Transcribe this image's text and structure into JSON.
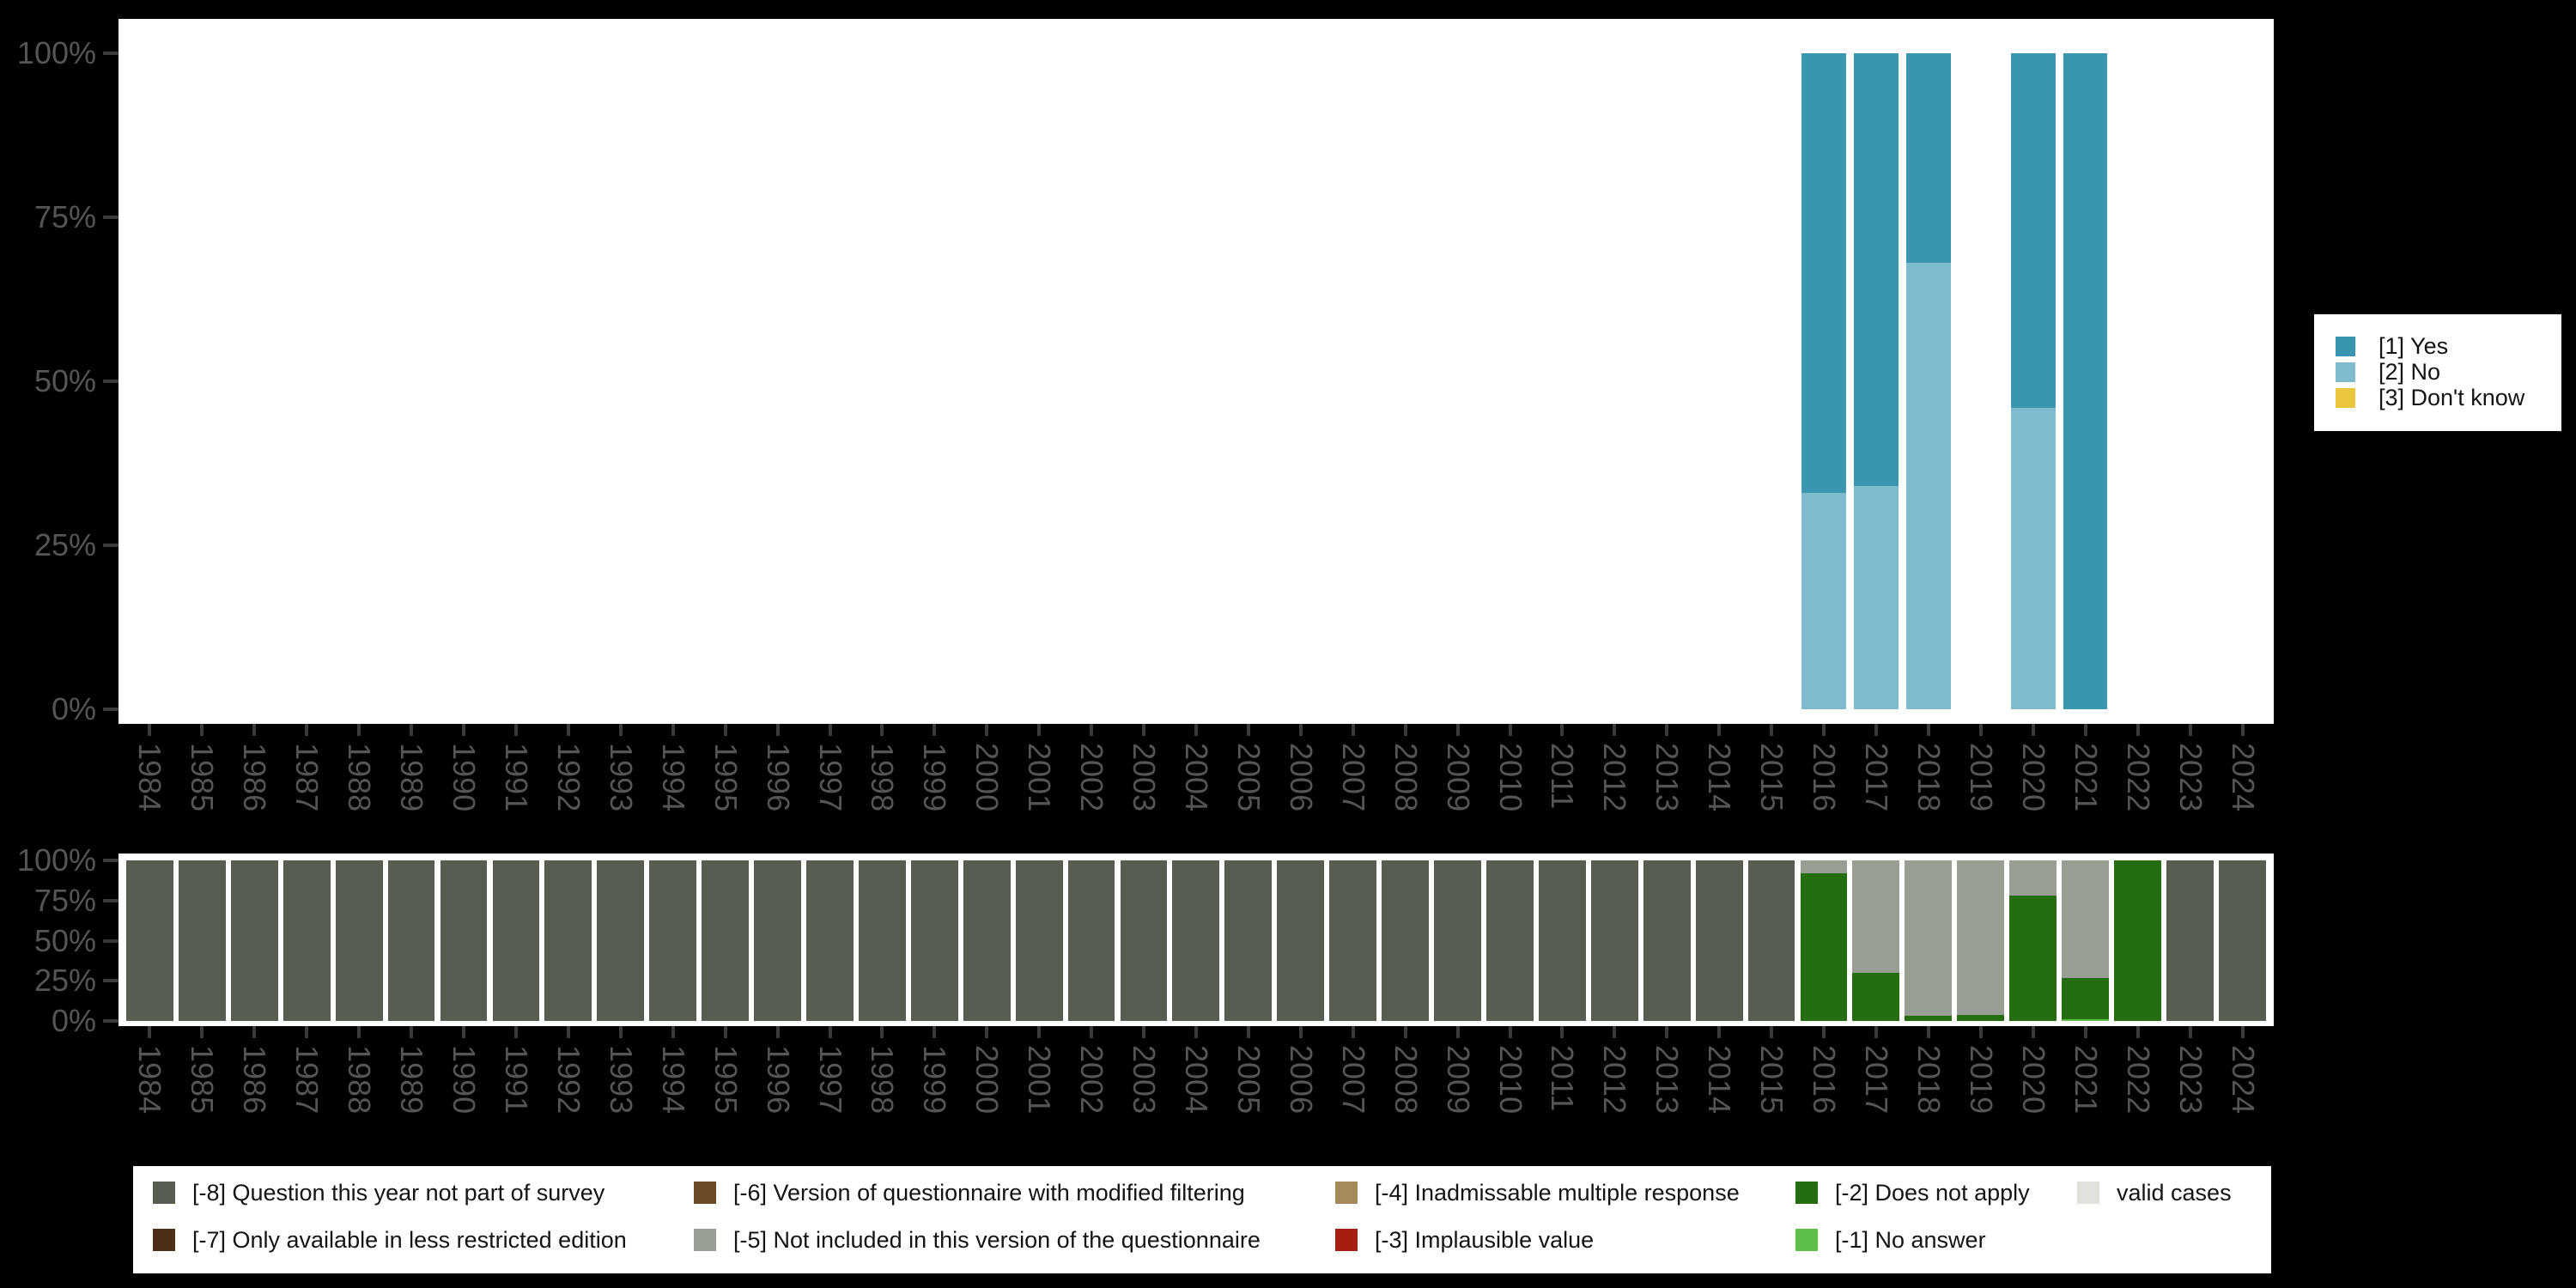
{
  "page": {
    "background_color": "#000000",
    "panel_color": "#ffffff",
    "axis_text_color": "#555555",
    "axis_tick_color": "#3a3a3a"
  },
  "chart_data": [
    {
      "type": "bar",
      "stacked": true,
      "unit": "percent",
      "title": "",
      "xlabel": "",
      "ylabel": "",
      "ylim": [
        0,
        100
      ],
      "grid": false,
      "legend_position": "right",
      "y_tick_labels": [
        "100%",
        "75%",
        "50%",
        "25%",
        "0%"
      ],
      "categories": [
        "1984",
        "1985",
        "1986",
        "1987",
        "1988",
        "1989",
        "1990",
        "1991",
        "1992",
        "1993",
        "1994",
        "1995",
        "1996",
        "1997",
        "1998",
        "1999",
        "2000",
        "2001",
        "2002",
        "2003",
        "2004",
        "2005",
        "2006",
        "2007",
        "2008",
        "2009",
        "2010",
        "2011",
        "2012",
        "2013",
        "2014",
        "2015",
        "2016",
        "2017",
        "2018",
        "2019",
        "2020",
        "2021",
        "2022",
        "2023",
        "2024"
      ],
      "series": [
        {
          "name": "[1] Yes",
          "color": "#3a96ae",
          "values": [
            0,
            0,
            0,
            0,
            0,
            0,
            0,
            0,
            0,
            0,
            0,
            0,
            0,
            0,
            0,
            0,
            0,
            0,
            0,
            0,
            0,
            0,
            0,
            0,
            0,
            0,
            0,
            0,
            0,
            0,
            0,
            0,
            67,
            66,
            32,
            0,
            54,
            100,
            0,
            0,
            0
          ]
        },
        {
          "name": "[2] No",
          "color": "#7ebbcc",
          "values": [
            0,
            0,
            0,
            0,
            0,
            0,
            0,
            0,
            0,
            0,
            0,
            0,
            0,
            0,
            0,
            0,
            0,
            0,
            0,
            0,
            0,
            0,
            0,
            0,
            0,
            0,
            0,
            0,
            0,
            0,
            0,
            0,
            33,
            34,
            68,
            0,
            46,
            0,
            0,
            0,
            0
          ]
        },
        {
          "name": "[3] Don't know",
          "color": "#e9c63c",
          "values": [
            0,
            0,
            0,
            0,
            0,
            0,
            0,
            0,
            0,
            0,
            0,
            0,
            0,
            0,
            0,
            0,
            0,
            0,
            0,
            0,
            0,
            0,
            0,
            0,
            0,
            0,
            0,
            0,
            0,
            0,
            0,
            0,
            0,
            0,
            0,
            0,
            0,
            0,
            0,
            0,
            0
          ]
        }
      ]
    },
    {
      "type": "bar",
      "stacked": true,
      "unit": "percent",
      "title": "",
      "xlabel": "",
      "ylabel": "",
      "ylim": [
        0,
        100
      ],
      "grid": false,
      "legend_position": "bottom",
      "y_tick_labels": [
        "100%",
        "75%",
        "50%",
        "25%",
        "0%"
      ],
      "categories": [
        "1984",
        "1985",
        "1986",
        "1987",
        "1988",
        "1989",
        "1990",
        "1991",
        "1992",
        "1993",
        "1994",
        "1995",
        "1996",
        "1997",
        "1998",
        "1999",
        "2000",
        "2001",
        "2002",
        "2003",
        "2004",
        "2005",
        "2006",
        "2007",
        "2008",
        "2009",
        "2010",
        "2011",
        "2012",
        "2013",
        "2014",
        "2015",
        "2016",
        "2017",
        "2018",
        "2019",
        "2020",
        "2021",
        "2022",
        "2023",
        "2024"
      ],
      "series": [
        {
          "name": "[-8] Question this year not part of survey",
          "color": "#575e51",
          "values": [
            100,
            100,
            100,
            100,
            100,
            100,
            100,
            100,
            100,
            100,
            100,
            100,
            100,
            100,
            100,
            100,
            100,
            100,
            100,
            100,
            100,
            100,
            100,
            100,
            100,
            100,
            100,
            100,
            100,
            100,
            100,
            100,
            0,
            0,
            0,
            0,
            0,
            0,
            0,
            100,
            100
          ]
        },
        {
          "name": "[-7] Only available in less restricted edition",
          "color": "#4e2f15",
          "values": [
            0,
            0,
            0,
            0,
            0,
            0,
            0,
            0,
            0,
            0,
            0,
            0,
            0,
            0,
            0,
            0,
            0,
            0,
            0,
            0,
            0,
            0,
            0,
            0,
            0,
            0,
            0,
            0,
            0,
            0,
            0,
            0,
            0,
            0,
            0,
            0,
            0,
            0,
            0,
            0,
            0
          ]
        },
        {
          "name": "[-6] Version of questionnaire with modified filtering",
          "color": "#6b4a26",
          "values": [
            0,
            0,
            0,
            0,
            0,
            0,
            0,
            0,
            0,
            0,
            0,
            0,
            0,
            0,
            0,
            0,
            0,
            0,
            0,
            0,
            0,
            0,
            0,
            0,
            0,
            0,
            0,
            0,
            0,
            0,
            0,
            0,
            0,
            0,
            0,
            0,
            0,
            0,
            0,
            0,
            0
          ]
        },
        {
          "name": "[-5] Not included in this version of the questionnaire",
          "color": "#999e94",
          "values": [
            0,
            0,
            0,
            0,
            0,
            0,
            0,
            0,
            0,
            0,
            0,
            0,
            0,
            0,
            0,
            0,
            0,
            0,
            0,
            0,
            0,
            0,
            0,
            0,
            0,
            0,
            0,
            0,
            0,
            0,
            0,
            0,
            8,
            70,
            97,
            96,
            22,
            73,
            0,
            0,
            0
          ]
        },
        {
          "name": "[-4] Inadmissable multiple response",
          "color": "#a58a5c",
          "values": [
            0,
            0,
            0,
            0,
            0,
            0,
            0,
            0,
            0,
            0,
            0,
            0,
            0,
            0,
            0,
            0,
            0,
            0,
            0,
            0,
            0,
            0,
            0,
            0,
            0,
            0,
            0,
            0,
            0,
            0,
            0,
            0,
            0,
            0,
            0,
            0,
            0,
            0,
            0,
            0,
            0
          ]
        },
        {
          "name": "[-3] Implausible value",
          "color": "#a91c11",
          "values": [
            0,
            0,
            0,
            0,
            0,
            0,
            0,
            0,
            0,
            0,
            0,
            0,
            0,
            0,
            0,
            0,
            0,
            0,
            0,
            0,
            0,
            0,
            0,
            0,
            0,
            0,
            0,
            0,
            0,
            0,
            0,
            0,
            0,
            0,
            0,
            0,
            0,
            0,
            0,
            0,
            0
          ]
        },
        {
          "name": "[-2] Does not apply",
          "color": "#256e10",
          "values": [
            0,
            0,
            0,
            0,
            0,
            0,
            0,
            0,
            0,
            0,
            0,
            0,
            0,
            0,
            0,
            0,
            0,
            0,
            0,
            0,
            0,
            0,
            0,
            0,
            0,
            0,
            0,
            0,
            0,
            0,
            0,
            0,
            92,
            30,
            3,
            4,
            78,
            26,
            100,
            0,
            0
          ]
        },
        {
          "name": "[-1] No answer",
          "color": "#5bbf48",
          "values": [
            0,
            0,
            0,
            0,
            0,
            0,
            0,
            0,
            0,
            0,
            0,
            0,
            0,
            0,
            0,
            0,
            0,
            0,
            0,
            0,
            0,
            0,
            0,
            0,
            0,
            0,
            0,
            0,
            0,
            0,
            0,
            0,
            0,
            0,
            0,
            0,
            0,
            1,
            0,
            0,
            0
          ]
        },
        {
          "name": "valid cases",
          "color": "#e0e3db",
          "values": [
            0,
            0,
            0,
            0,
            0,
            0,
            0,
            0,
            0,
            0,
            0,
            0,
            0,
            0,
            0,
            0,
            0,
            0,
            0,
            0,
            0,
            0,
            0,
            0,
            0,
            0,
            0,
            0,
            0,
            0,
            0,
            0,
            0,
            0,
            0,
            0,
            0,
            0,
            0,
            0,
            0
          ]
        }
      ]
    }
  ]
}
